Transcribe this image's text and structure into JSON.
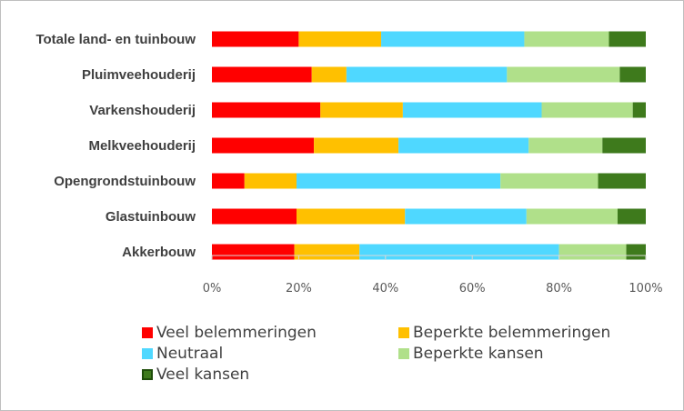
{
  "chart_data": {
    "type": "bar",
    "orientation": "horizontal",
    "stacked": "percent",
    "categories": [
      "Totale land- en tuinbouw",
      "Pluimveehouderij",
      "Varkenshouderij",
      "Melkveehouderij",
      "Opengrondstuinbouw",
      "Glastuinbouw",
      "Akkerbouw"
    ],
    "series": [
      {
        "name": "Veel belemmeringen",
        "color": "#ff0000",
        "values": [
          20,
          23,
          25,
          23.5,
          7.5,
          19.5,
          19
        ]
      },
      {
        "name": "Beperkte belemmeringen",
        "color": "#ffc000",
        "values": [
          19,
          8,
          19,
          19.5,
          12,
          25,
          15
        ]
      },
      {
        "name": "Neutraal",
        "color": "#4fd8ff",
        "values": [
          33,
          37,
          32,
          30,
          47,
          28,
          46
        ]
      },
      {
        "name": "Beperkte kansen",
        "color": "#b0e08a",
        "values": [
          19.5,
          26,
          21,
          17,
          22.5,
          21,
          15.5
        ]
      },
      {
        "name": "Veel kansen",
        "color": "#3e7a1c",
        "values": [
          8.5,
          6,
          3,
          10,
          11,
          6.5,
          4.5
        ]
      }
    ],
    "xticks": [
      "0%",
      "20%",
      "40%",
      "60%",
      "80%",
      "100%"
    ],
    "xlim": [
      0,
      100
    ],
    "grid": false,
    "legend_position": "bottom"
  }
}
